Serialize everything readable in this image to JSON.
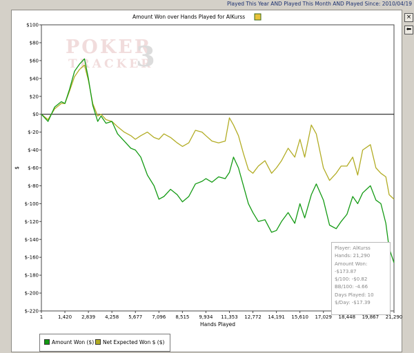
{
  "status_text": "Played This Year AND Played This Month AND Played Since: 2010/04/19",
  "chart_data": {
    "type": "line",
    "title": "Amount Won over Hands Played for AlKurss",
    "xlabel": "Hands Played",
    "ylabel": "$",
    "xlim": [
      1,
      21290
    ],
    "ylim": [
      -220,
      100
    ],
    "x_ticks": [
      "1",
      "1,420",
      "2,839",
      "4,258",
      "5,677",
      "7,096",
      "8,515",
      "9,934",
      "11,353",
      "12,772",
      "14,191",
      "15,610",
      "17,029",
      "18,448",
      "19,867",
      "21,290"
    ],
    "y_ticks": [
      "$100",
      "$80",
      "$60",
      "$40",
      "$20",
      "$0",
      "$-20",
      "$-40",
      "$-60",
      "$-80",
      "$-100",
      "$-120",
      "$-140",
      "$-160",
      "$-180",
      "$-200",
      "$-220"
    ],
    "grid": false,
    "legend_position": "bottom-left",
    "series": [
      {
        "name": "Amount Won ($)",
        "color": "#139a13",
        "x": [
          1,
          400,
          800,
          1200,
          1420,
          1700,
          2000,
          2300,
          2600,
          2839,
          3100,
          3400,
          3600,
          3900,
          4258,
          4600,
          5000,
          5400,
          5677,
          6000,
          6400,
          6800,
          7096,
          7400,
          7800,
          8200,
          8515,
          8900,
          9300,
          9700,
          9934,
          10300,
          10700,
          11100,
          11353,
          11600,
          11900,
          12200,
          12500,
          12772,
          13100,
          13500,
          13900,
          14191,
          14500,
          14900,
          15300,
          15610,
          15900,
          16300,
          16600,
          17029,
          17400,
          17800,
          18100,
          18448,
          18800,
          19100,
          19400,
          19867,
          20200,
          20500,
          20800,
          21000,
          21290
        ],
        "values": [
          0,
          -8,
          8,
          14,
          12,
          28,
          48,
          56,
          62,
          40,
          10,
          -8,
          -2,
          -10,
          -8,
          -22,
          -30,
          -38,
          -40,
          -48,
          -68,
          -80,
          -95,
          -92,
          -84,
          -90,
          -98,
          -92,
          -78,
          -75,
          -72,
          -76,
          -70,
          -72,
          -65,
          -48,
          -60,
          -80,
          -100,
          -110,
          -120,
          -118,
          -132,
          -130,
          -120,
          -110,
          -122,
          -100,
          -116,
          -90,
          -78,
          -96,
          -124,
          -128,
          -120,
          -112,
          -92,
          -100,
          -88,
          -80,
          -96,
          -100,
          -122,
          -150,
          -166
        ]
      },
      {
        "name": "Net Expected Won $ ($)",
        "color": "#b2ac24",
        "x": [
          1,
          400,
          800,
          1200,
          1420,
          1700,
          2000,
          2300,
          2600,
          2839,
          3100,
          3400,
          3600,
          3900,
          4258,
          4600,
          5000,
          5400,
          5677,
          6000,
          6400,
          6800,
          7096,
          7400,
          7800,
          8200,
          8515,
          8900,
          9300,
          9700,
          9934,
          10300,
          10700,
          11100,
          11353,
          11600,
          11900,
          12200,
          12500,
          12772,
          13100,
          13500,
          13900,
          14191,
          14500,
          14900,
          15300,
          15610,
          15900,
          16300,
          16600,
          17029,
          17400,
          17800,
          18100,
          18448,
          18800,
          19100,
          19400,
          19867,
          20200,
          20500,
          20800,
          21000,
          21290
        ],
        "values": [
          0,
          -6,
          6,
          12,
          12,
          26,
          42,
          50,
          55,
          38,
          12,
          -2,
          0,
          -6,
          -8,
          -14,
          -20,
          -24,
          -28,
          -24,
          -20,
          -26,
          -28,
          -22,
          -26,
          -32,
          -36,
          -32,
          -18,
          -20,
          -24,
          -30,
          -32,
          -30,
          -4,
          -12,
          -24,
          -44,
          -62,
          -66,
          -58,
          -52,
          -66,
          -60,
          -52,
          -38,
          -48,
          -28,
          -48,
          -12,
          -22,
          -60,
          -74,
          -66,
          -58,
          -58,
          -48,
          -68,
          -40,
          -34,
          -60,
          -66,
          -70,
          -90,
          -95
        ]
      }
    ]
  },
  "legend": {
    "items": [
      {
        "label": "Amount Won ($)",
        "color": "#139a13"
      },
      {
        "label": "Net Expected Won $ ($)",
        "color": "#b2ac24"
      }
    ]
  },
  "stats": {
    "player": "Player: AlKurss",
    "hands": "Hands: 21,290",
    "amount_won": "Amount Won: -$173.87",
    "per_100": "$/100: -$0.82",
    "bb_100": "BB/100: -4.66",
    "days_played": "Days Played: 10",
    "per_day": "$/Day: -$17.39"
  },
  "watermark": {
    "line1": "POKER",
    "line2": "TRACKER",
    "number": "3"
  },
  "controls": {
    "close_label": "×",
    "back_label": "⬅"
  }
}
